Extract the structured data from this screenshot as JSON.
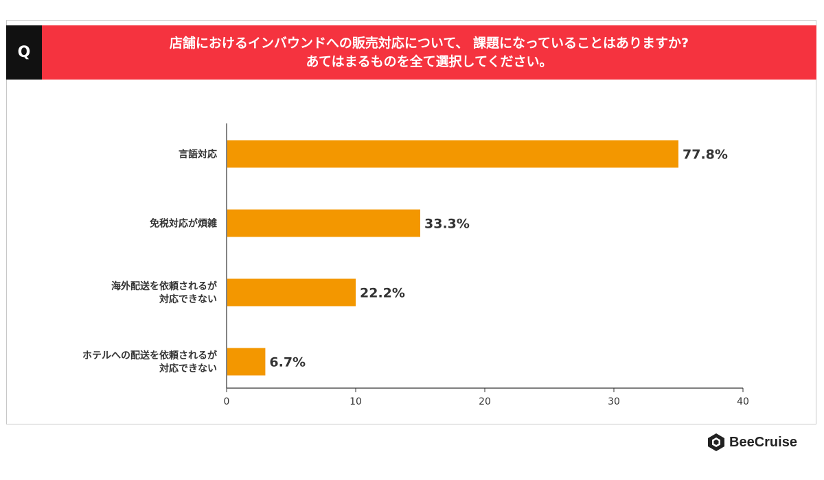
{
  "question_badge": "Q",
  "question": {
    "line1": "店舗におけるインバウンドへの販売対応について、 課題になっていることはありますか?",
    "line2": "あてはまるものを全て選択してください。"
  },
  "brand": {
    "name": "BeeCruise",
    "icon": "hexagon-logo-icon"
  },
  "colors": {
    "bar": "#f39700",
    "header": "#f5333f",
    "badge": "#111111"
  },
  "chart_data": {
    "type": "bar",
    "orientation": "horizontal",
    "categories": [
      [
        "言語対応"
      ],
      [
        "免税対応が煩雑"
      ],
      [
        "海外配送を依頼されるが",
        "対応できない"
      ],
      [
        "ホテルへの配送を依頼されるが",
        "対応できない"
      ]
    ],
    "values": [
      35,
      15,
      10,
      3
    ],
    "value_labels": [
      "77.8%",
      "33.3%",
      "22.2%",
      "6.7%"
    ],
    "xlim": [
      0,
      40
    ],
    "xticks": [
      0,
      10,
      20,
      30,
      40
    ],
    "grid": false,
    "legend": "none"
  }
}
